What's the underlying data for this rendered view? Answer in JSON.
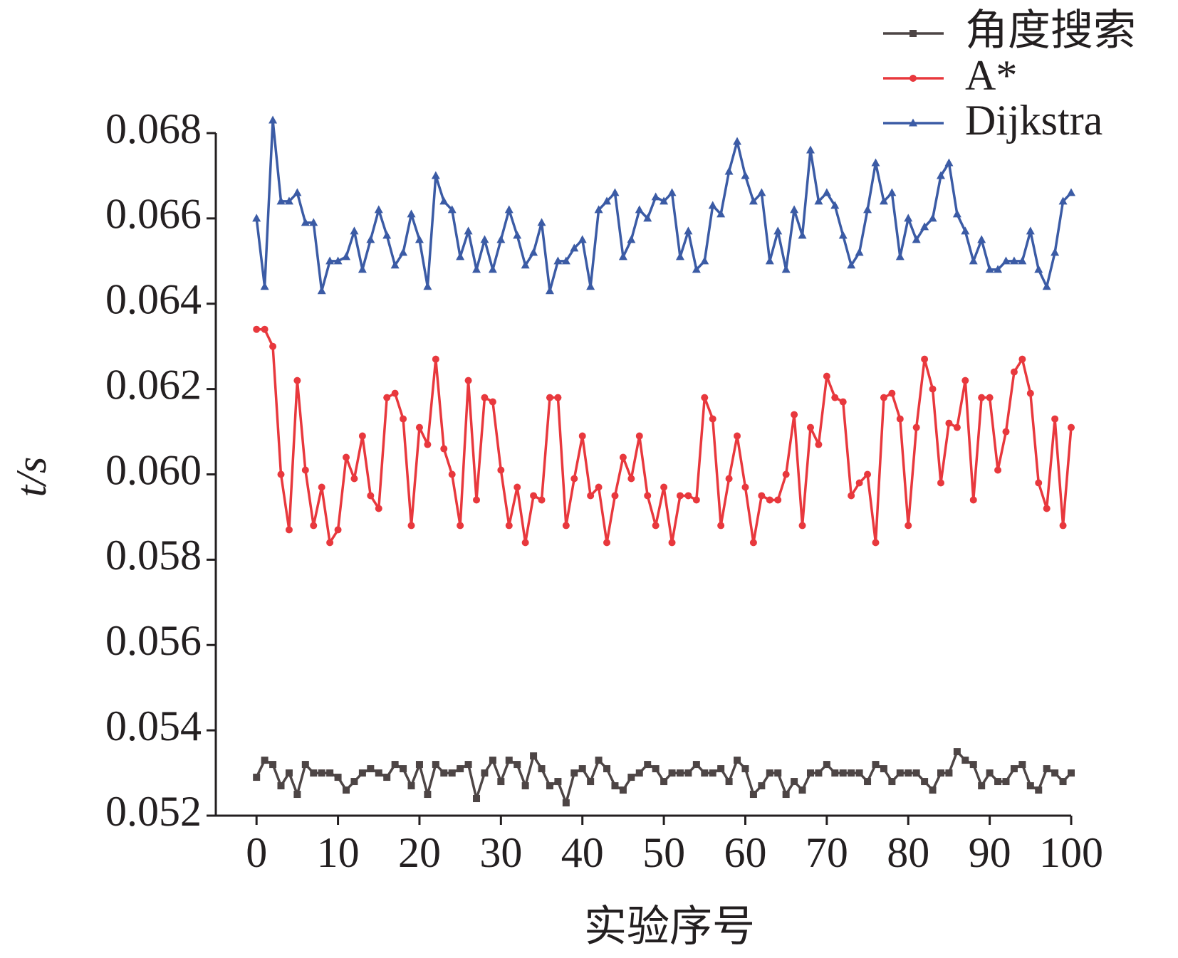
{
  "chart_data": {
    "type": "line",
    "x_label": "实验序号",
    "y_label": "t/s",
    "x": [
      0,
      1,
      2,
      3,
      4,
      5,
      6,
      7,
      8,
      9,
      10,
      11,
      12,
      13,
      14,
      15,
      16,
      17,
      18,
      19,
      20,
      21,
      22,
      23,
      24,
      25,
      26,
      27,
      28,
      29,
      30,
      31,
      32,
      33,
      34,
      35,
      36,
      37,
      38,
      39,
      40,
      41,
      42,
      43,
      44,
      45,
      46,
      47,
      48,
      49,
      50,
      51,
      52,
      53,
      54,
      55,
      56,
      57,
      58,
      59,
      60,
      61,
      62,
      63,
      64,
      65,
      66,
      67,
      68,
      69,
      70,
      71,
      72,
      73,
      74,
      75,
      76,
      77,
      78,
      79,
      80,
      81,
      82,
      83,
      84,
      85,
      86,
      87,
      88,
      89,
      90,
      91,
      92,
      93,
      94,
      95,
      96,
      97,
      98,
      99,
      100
    ],
    "xlim": [
      -5,
      100
    ],
    "xticks": [
      0,
      10,
      20,
      30,
      40,
      50,
      60,
      70,
      80,
      90,
      100
    ],
    "ylim": [
      0.052,
      0.068
    ],
    "yticks": [
      0.052,
      0.054,
      0.056,
      0.058,
      {
        "value": 0.06,
        "label": "0.060"
      },
      0.062,
      0.064,
      0.066,
      0.068
    ],
    "legend": "upper right",
    "series": [
      {
        "name": "角度搜索",
        "color": "#4d4545",
        "marker": "square",
        "values": [
          0.0529,
          0.0533,
          0.0532,
          0.0527,
          0.053,
          0.0525,
          0.0532,
          0.053,
          0.053,
          0.053,
          0.0529,
          0.0526,
          0.0528,
          0.053,
          0.0531,
          0.053,
          0.0529,
          0.0532,
          0.0531,
          0.0527,
          0.0532,
          0.0525,
          0.0532,
          0.053,
          0.053,
          0.0531,
          0.0532,
          0.0524,
          0.053,
          0.0533,
          0.0528,
          0.0533,
          0.0532,
          0.0527,
          0.0534,
          0.0531,
          0.0527,
          0.0528,
          0.0523,
          0.053,
          0.0531,
          0.0528,
          0.0533,
          0.0531,
          0.0527,
          0.0526,
          0.0529,
          0.053,
          0.0532,
          0.0531,
          0.0528,
          0.053,
          0.053,
          0.053,
          0.0532,
          0.053,
          0.053,
          0.0531,
          0.0528,
          0.0533,
          0.0531,
          0.0525,
          0.0527,
          0.053,
          0.053,
          0.0525,
          0.0528,
          0.0526,
          0.053,
          0.053,
          0.0532,
          0.053,
          0.053,
          0.053,
          0.053,
          0.0528,
          0.0532,
          0.0531,
          0.0528,
          0.053,
          0.053,
          0.053,
          0.0528,
          0.0526,
          0.053,
          0.053,
          0.0535,
          0.0533,
          0.0532,
          0.0527,
          0.053,
          0.0528,
          0.0528,
          0.0531,
          0.0532,
          0.0527,
          0.0526,
          0.0531,
          0.053,
          0.0528,
          0.053
        ]
      },
      {
        "name": "A*",
        "color": "#e8383d",
        "marker": "circle",
        "values": [
          0.0634,
          0.0634,
          0.063,
          0.06,
          0.0587,
          0.0622,
          0.0601,
          0.0588,
          0.0597,
          0.0584,
          0.0587,
          0.0604,
          0.0599,
          0.0609,
          0.0595,
          0.0592,
          0.0618,
          0.0619,
          0.0613,
          0.0588,
          0.0611,
          0.0607,
          0.0627,
          0.0606,
          0.06,
          0.0588,
          0.0622,
          0.0594,
          0.0618,
          0.0617,
          0.0601,
          0.0588,
          0.0597,
          0.0584,
          0.0595,
          0.0594,
          0.0618,
          0.0618,
          0.0588,
          0.0599,
          0.0609,
          0.0595,
          0.0597,
          0.0584,
          0.0595,
          0.0604,
          0.0599,
          0.0609,
          0.0595,
          0.0588,
          0.0597,
          0.0584,
          0.0595,
          0.0595,
          0.0594,
          0.0618,
          0.0613,
          0.0588,
          0.0599,
          0.0609,
          0.0597,
          0.0584,
          0.0595,
          0.0594,
          0.0594,
          0.06,
          0.0614,
          0.0588,
          0.0611,
          0.0607,
          0.0623,
          0.0618,
          0.0617,
          0.0595,
          0.0598,
          0.06,
          0.0584,
          0.0618,
          0.0619,
          0.0613,
          0.0588,
          0.0611,
          0.0627,
          0.062,
          0.0598,
          0.0612,
          0.0611,
          0.0622,
          0.0594,
          0.0618,
          0.0618,
          0.0601,
          0.061,
          0.0624,
          0.0627,
          0.0619,
          0.0598,
          0.0592,
          0.0613,
          0.0588,
          0.0611
        ]
      },
      {
        "name": "Dijkstra",
        "color": "#3b5ba5",
        "marker": "triangle",
        "values": [
          0.066,
          0.0644,
          0.0683,
          0.0664,
          0.0664,
          0.0666,
          0.0659,
          0.0659,
          0.0643,
          0.065,
          0.065,
          0.0651,
          0.0657,
          0.0648,
          0.0655,
          0.0662,
          0.0656,
          0.0649,
          0.0652,
          0.0661,
          0.0655,
          0.0644,
          0.067,
          0.0664,
          0.0662,
          0.0651,
          0.0657,
          0.0648,
          0.0655,
          0.0648,
          0.0655,
          0.0662,
          0.0656,
          0.0649,
          0.0652,
          0.0659,
          0.0643,
          0.065,
          0.065,
          0.0653,
          0.0655,
          0.0644,
          0.0662,
          0.0664,
          0.0666,
          0.0651,
          0.0655,
          0.0662,
          0.066,
          0.0665,
          0.0664,
          0.0666,
          0.0651,
          0.0657,
          0.0648,
          0.065,
          0.0663,
          0.0661,
          0.0671,
          0.0678,
          0.067,
          0.0664,
          0.0666,
          0.065,
          0.0657,
          0.0648,
          0.0662,
          0.0656,
          0.0676,
          0.0664,
          0.0666,
          0.0663,
          0.0656,
          0.0649,
          0.0652,
          0.0662,
          0.0673,
          0.0664,
          0.0666,
          0.0651,
          0.066,
          0.0655,
          0.0658,
          0.066,
          0.067,
          0.0673,
          0.0661,
          0.0657,
          0.065,
          0.0655,
          0.0648,
          0.0648,
          0.065,
          0.065,
          0.065,
          0.0657,
          0.0648,
          0.0644,
          0.0652,
          0.0664,
          0.0666
        ]
      }
    ]
  }
}
